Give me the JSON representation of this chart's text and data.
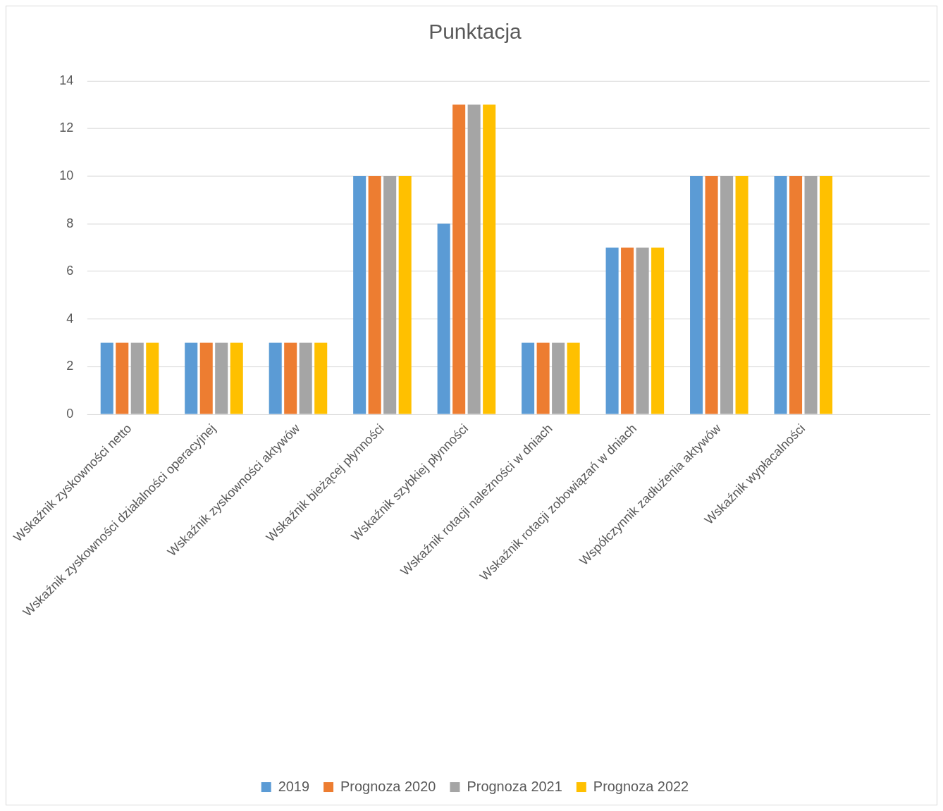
{
  "chart_data": {
    "type": "bar",
    "title": "Punktacja",
    "categories": [
      "Wskaźnik zyskowności netto",
      "Wskaźnik zyskowności działalności operacyjnej",
      "Wskaźnik zyskowności aktywów",
      "Wskaźnik bieżącej płynności",
      "Wskaźnik szybkiej płynności",
      "Wskaźnik rotacji należności w dniach",
      "Wskaźnik rotacji zobowiązań w dniach",
      "Współczynnik zadłużenia aktywów",
      "Wskaźnik wypłacalności",
      null
    ],
    "series": [
      {
        "name": "2019",
        "color": "#5b9bd5",
        "values": [
          3,
          3,
          3,
          10,
          8,
          3,
          7,
          10,
          10,
          null
        ]
      },
      {
        "name": "Prognoza 2020",
        "color": "#ed7d31",
        "values": [
          3,
          3,
          3,
          10,
          13,
          3,
          7,
          10,
          10,
          null
        ]
      },
      {
        "name": "Prognoza 2021",
        "color": "#a5a5a5",
        "values": [
          3,
          3,
          3,
          10,
          13,
          3,
          7,
          10,
          10,
          null
        ]
      },
      {
        "name": "Prognoza 2022",
        "color": "#ffc000",
        "values": [
          3,
          3,
          3,
          10,
          13,
          3,
          7,
          10,
          10,
          null
        ]
      }
    ],
    "ylim": [
      0,
      14
    ],
    "yticks": [
      0,
      2,
      4,
      6,
      8,
      10,
      12,
      14
    ],
    "grid": "y",
    "legend": "bottom"
  }
}
